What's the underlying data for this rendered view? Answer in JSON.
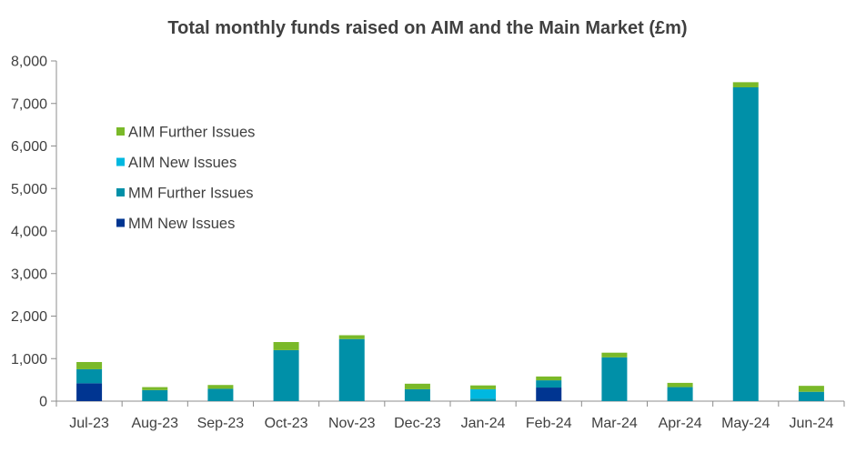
{
  "chart_data": {
    "type": "bar",
    "stacked": true,
    "title": "Total monthly funds raised on AIM and the Main Market (£m)",
    "xlabel": "",
    "ylabel": "",
    "categories": [
      "Jul-23",
      "Aug-23",
      "Sep-23",
      "Oct-23",
      "Nov-23",
      "Dec-23",
      "Jan-24",
      "Feb-24",
      "Mar-24",
      "Apr-24",
      "May-24",
      "Jun-24"
    ],
    "ylim": [
      0,
      8000
    ],
    "yticks": [
      0,
      1000,
      2000,
      3000,
      4000,
      5000,
      6000,
      7000,
      8000
    ],
    "ytick_labels": [
      "0",
      "1,000",
      "2,000",
      "3,000",
      "4,000",
      "5,000",
      "6,000",
      "7,000",
      "8,000"
    ],
    "grid": false,
    "legend_position": "upper-left",
    "series": [
      {
        "name": "MM New Issues",
        "color": "#003591",
        "values": [
          420,
          0,
          0,
          0,
          0,
          0,
          0,
          320,
          0,
          0,
          0,
          0
        ]
      },
      {
        "name": "MM Further Issues",
        "color": "#0090a8",
        "values": [
          330,
          260,
          290,
          1200,
          1460,
          280,
          60,
          170,
          1030,
          330,
          7380,
          220
        ]
      },
      {
        "name": "AIM New Issues",
        "color": "#00b8e0",
        "values": [
          0,
          0,
          0,
          0,
          0,
          0,
          220,
          0,
          0,
          0,
          0,
          0
        ]
      },
      {
        "name": "AIM Further Issues",
        "color": "#7ab929",
        "values": [
          170,
          70,
          90,
          190,
          90,
          130,
          90,
          90,
          110,
          100,
          120,
          140
        ]
      }
    ],
    "legend_order": [
      "AIM Further Issues",
      "AIM New Issues",
      "MM Further Issues",
      "MM New Issues"
    ]
  }
}
